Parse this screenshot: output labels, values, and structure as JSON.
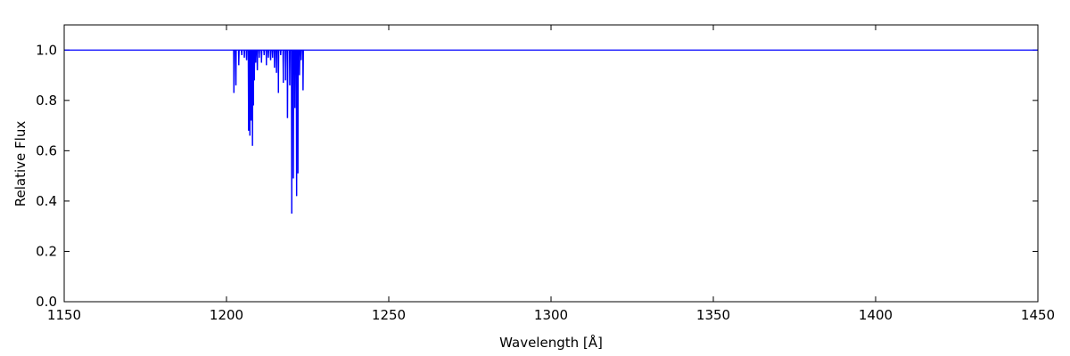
{
  "chart_data": {
    "type": "line",
    "title": "",
    "xlabel": "Wavelength [Å]",
    "ylabel": "Relative Flux",
    "xlim": [
      1150,
      1450
    ],
    "ylim": [
      0.0,
      1.1
    ],
    "xticks": [
      1150,
      1200,
      1250,
      1300,
      1350,
      1400,
      1450
    ],
    "xtick_labels": [
      "1150",
      "1200",
      "1250",
      "1300",
      "1350",
      "1400",
      "1450"
    ],
    "yticks": [
      0.0,
      0.2,
      0.4,
      0.6,
      0.8,
      1.0
    ],
    "ytick_labels": [
      "0.0",
      "0.2",
      "0.4",
      "0.6",
      "0.8",
      "1.0"
    ],
    "grid": false,
    "line_color": "#0000ff",
    "continuum": 1.0,
    "absorption_lines": [
      {
        "x": 1202.3,
        "y": 0.83
      },
      {
        "x": 1202.9,
        "y": 0.86
      },
      {
        "x": 1203.8,
        "y": 0.94
      },
      {
        "x": 1204.7,
        "y": 0.98
      },
      {
        "x": 1205.5,
        "y": 0.97
      },
      {
        "x": 1206.2,
        "y": 0.96
      },
      {
        "x": 1206.8,
        "y": 0.68
      },
      {
        "x": 1207.2,
        "y": 0.66
      },
      {
        "x": 1207.6,
        "y": 0.72
      },
      {
        "x": 1208.0,
        "y": 0.62
      },
      {
        "x": 1208.3,
        "y": 0.78
      },
      {
        "x": 1208.6,
        "y": 0.88
      },
      {
        "x": 1209.0,
        "y": 0.95
      },
      {
        "x": 1209.5,
        "y": 0.92
      },
      {
        "x": 1210.1,
        "y": 0.97
      },
      {
        "x": 1210.8,
        "y": 0.95
      },
      {
        "x": 1211.6,
        "y": 0.98
      },
      {
        "x": 1212.3,
        "y": 0.94
      },
      {
        "x": 1212.9,
        "y": 0.97
      },
      {
        "x": 1213.6,
        "y": 0.96
      },
      {
        "x": 1214.2,
        "y": 0.97
      },
      {
        "x": 1214.8,
        "y": 0.93
      },
      {
        "x": 1215.4,
        "y": 0.91
      },
      {
        "x": 1216.0,
        "y": 0.83
      },
      {
        "x": 1216.7,
        "y": 0.98
      },
      {
        "x": 1217.5,
        "y": 0.87
      },
      {
        "x": 1218.2,
        "y": 0.88
      },
      {
        "x": 1218.8,
        "y": 0.73
      },
      {
        "x": 1219.5,
        "y": 0.86
      },
      {
        "x": 1220.1,
        "y": 0.35
      },
      {
        "x": 1220.6,
        "y": 0.49
      },
      {
        "x": 1221.1,
        "y": 0.77
      },
      {
        "x": 1221.6,
        "y": 0.42
      },
      {
        "x": 1222.0,
        "y": 0.51
      },
      {
        "x": 1222.5,
        "y": 0.9
      },
      {
        "x": 1223.0,
        "y": 0.96
      },
      {
        "x": 1223.6,
        "y": 0.84
      }
    ]
  }
}
